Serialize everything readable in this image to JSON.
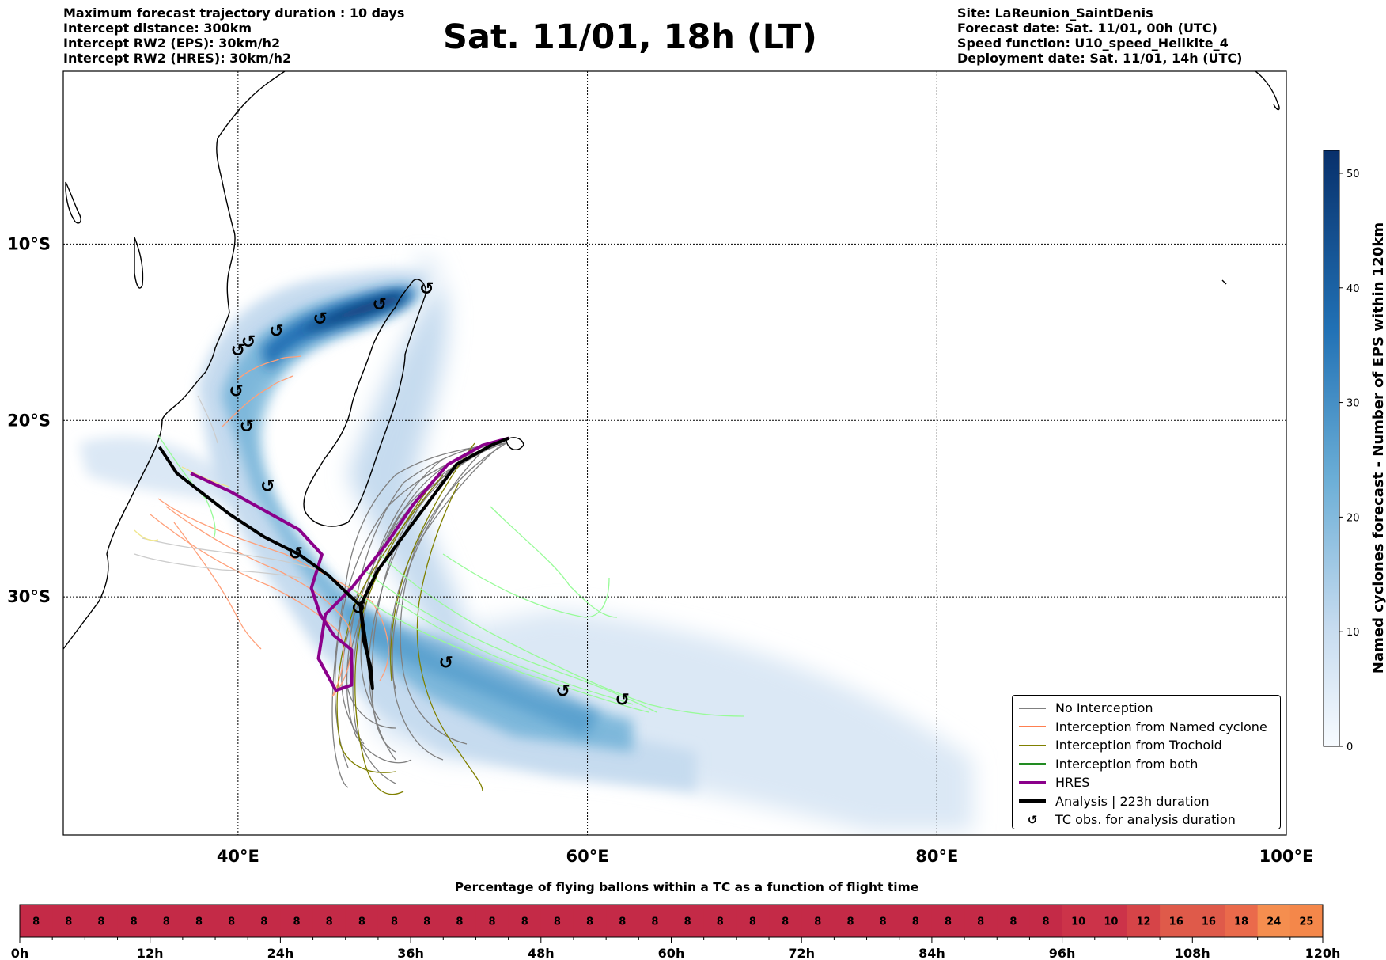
{
  "header": {
    "left_lines": [
      "Maximum forecast trajectory duration : 10 days",
      "Intercept distance: 300km",
      "Intercept RW2 (EPS):  30km/h2",
      "Intercept RW2 (HRES): 30km/h2"
    ],
    "title": "Sat. 11/01, 18h (LT)",
    "right_lines": [
      "Site: LaReunion_SaintDenis",
      "Forecast date: Sat. 11/01, 00h (UTC)",
      "Speed function: U10_speed_Helikite_4",
      "Deployment date: Sat. 11/01, 14h (UTC)"
    ]
  },
  "legend": [
    {
      "label": "No Interception",
      "color": "#808080",
      "width": 2,
      "kind": "line"
    },
    {
      "label": "Interception from Named cyclone",
      "color": "#ff7f50",
      "width": 2,
      "kind": "line"
    },
    {
      "label": "Interception from Trochoid",
      "color": "#808000",
      "width": 2,
      "kind": "line"
    },
    {
      "label": "Interception from both",
      "color": "#228b22",
      "width": 2,
      "kind": "line"
    },
    {
      "label": "HRES",
      "color": "#8b008b",
      "width": 4,
      "kind": "line"
    },
    {
      "label": "Analysis | 223h duration",
      "color": "#000000",
      "width": 4,
      "kind": "line"
    },
    {
      "label": "TC obs. for analysis duration",
      "icon": "↺",
      "kind": "icon"
    }
  ],
  "chart_data": [
    {
      "type": "map",
      "xlim": [
        30,
        100
      ],
      "ylim": [
        -43.5,
        -0.2
      ],
      "x_ticks": [
        {
          "value": 40,
          "label": "40°E"
        },
        {
          "value": 60,
          "label": "60°E"
        },
        {
          "value": 80,
          "label": "80°E"
        },
        {
          "value": 100,
          "label": "100°E"
        }
      ],
      "y_ticks": [
        {
          "value": -10,
          "label": "10°S"
        },
        {
          "value": -20,
          "label": "20°S"
        },
        {
          "value": -30,
          "label": "30°S"
        }
      ],
      "grid": true,
      "legend_position": "lower right",
      "analysis_track": [
        [
          55.5,
          -21
        ],
        [
          54.5,
          -21.4
        ],
        [
          52.5,
          -22.5
        ],
        [
          51,
          -24.5
        ],
        [
          49.5,
          -26.5
        ],
        [
          48,
          -28.5
        ],
        [
          47,
          -30.5
        ],
        [
          47.2,
          -32.5
        ],
        [
          47.6,
          -34
        ],
        [
          47.7,
          -35.2
        ],
        [
          47,
          -30.5
        ],
        [
          45.2,
          -28.8
        ],
        [
          43.5,
          -27.6
        ],
        [
          41.5,
          -26.6
        ],
        [
          39.5,
          -25.3
        ],
        [
          37.8,
          -24
        ],
        [
          36.5,
          -23
        ],
        [
          35.5,
          -21.5
        ]
      ],
      "hres_track": [
        [
          55.5,
          -21
        ],
        [
          54,
          -21.4
        ],
        [
          52,
          -22.5
        ],
        [
          50,
          -24.8
        ],
        [
          48.5,
          -27
        ],
        [
          46.5,
          -29.5
        ],
        [
          45,
          -31
        ],
        [
          44.6,
          -33.5
        ],
        [
          45.6,
          -35.3
        ],
        [
          46.5,
          -35
        ],
        [
          46.5,
          -33
        ],
        [
          45.5,
          -32.2
        ],
        [
          44.7,
          -31
        ],
        [
          44.2,
          -29.5
        ],
        [
          44.8,
          -27.6
        ],
        [
          43.5,
          -26.2
        ],
        [
          41.5,
          -25.1
        ],
        [
          39.5,
          -24
        ],
        [
          37.3,
          -23
        ]
      ],
      "tc_obs": [
        [
          50.8,
          -12.5
        ],
        [
          48.1,
          -13.4
        ],
        [
          44.7,
          -14.2
        ],
        [
          42.2,
          -14.9
        ],
        [
          40.6,
          -15.5
        ],
        [
          40,
          -16
        ],
        [
          39.9,
          -18.3
        ],
        [
          40.5,
          -20.3
        ],
        [
          41.7,
          -23.7
        ],
        [
          43.3,
          -27.5
        ],
        [
          46.9,
          -30.6
        ],
        [
          51.9,
          -33.7
        ],
        [
          58.6,
          -35.3
        ],
        [
          62,
          -35.8
        ]
      ],
      "eps_count_colorbar": {
        "label": "Named cyclones forecast - Number of EPS within 120km",
        "min": 0,
        "max": 52,
        "ticks": [
          0,
          10,
          20,
          30,
          40,
          50
        ]
      }
    },
    {
      "type": "heatmap",
      "title": "Percentage of flying ballons within a TC as a function of flight time",
      "x_tick_labels": [
        "0h",
        "12h",
        "24h",
        "36h",
        "48h",
        "60h",
        "72h",
        "84h",
        "96h",
        "108h",
        "120h"
      ],
      "x_range_hours": [
        0,
        120
      ],
      "values": [
        8,
        8,
        8,
        8,
        8,
        8,
        8,
        8,
        8,
        8,
        8,
        8,
        8,
        8,
        8,
        8,
        8,
        8,
        8,
        8,
        8,
        8,
        8,
        8,
        8,
        8,
        8,
        8,
        8,
        8,
        8,
        8,
        10,
        10,
        12,
        16,
        16,
        18,
        24,
        25
      ]
    }
  ]
}
